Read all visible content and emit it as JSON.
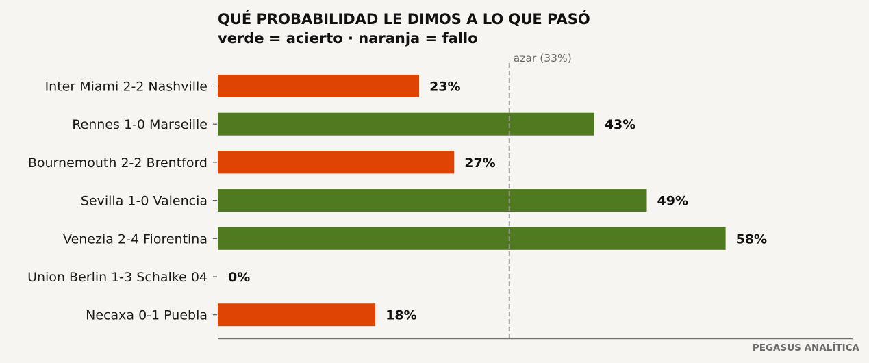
{
  "chart_data": {
    "type": "bar",
    "orientation": "horizontal",
    "title": "QUÉ PROBABILIDAD LE DIMOS A LO QUE PASÓ",
    "subtitle": "verde = acierto · naranja = fallo",
    "categories": [
      "Inter Miami 2-2 Nashville",
      "Rennes 1-0 Marseille",
      "Bournemouth 2-2 Brentford",
      "Sevilla 1-0 Valencia",
      "Venezia 2-4 Fiorentina",
      "Union Berlin 1-3 Schalke 04",
      "Necaxa 0-1 Puebla"
    ],
    "values": [
      23,
      43,
      27,
      49,
      58,
      0,
      18
    ],
    "value_labels": [
      "23%",
      "43%",
      "27%",
      "49%",
      "58%",
      "0%",
      "18%"
    ],
    "outcome": [
      "fallo",
      "acierto",
      "fallo",
      "acierto",
      "acierto",
      "fallo",
      "fallo"
    ],
    "xlim": [
      0,
      72.5
    ],
    "reference_line": {
      "value": 33.3,
      "label": "azar (33%)"
    },
    "grid": false,
    "colors": {
      "acierto": "#507a1f",
      "fallo": "#e04402",
      "reference": "#999999",
      "axis": "#777777"
    }
  },
  "credit": "PEGASUS ANALÍTICA"
}
